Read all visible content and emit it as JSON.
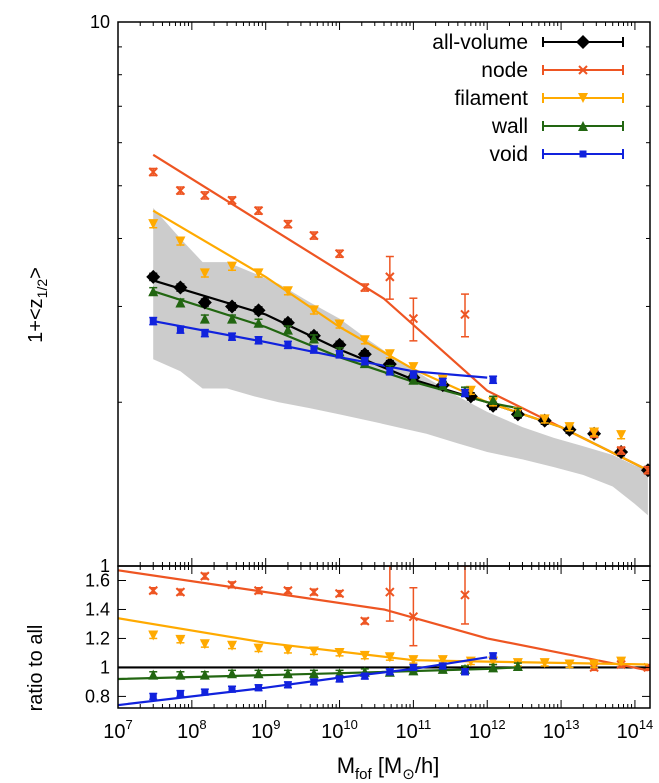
{
  "chart_data": [
    {
      "type": "scatter",
      "panel": "top",
      "xlabel_main": "M",
      "xlabel_sub": "fof",
      "xlabel_unit_pre": " [M",
      "xlabel_unit_sub": "⊙",
      "xlabel_unit_post": "/h]",
      "ylabel_main": "1+<z",
      "ylabel_sub": "1/2",
      "ylabel_post": ">",
      "xscale": "log",
      "yscale": "log",
      "xlim": [
        10000000.0,
        160000000000000.0
      ],
      "ylim": [
        1,
        10
      ],
      "ytick_labels": [
        "1",
        "10"
      ],
      "legend_position": "top-right",
      "band": {
        "x": [
          30000000.0,
          70000000.0,
          140000000.0,
          300000000.0,
          700000000.0,
          1500000000.0,
          4000000000.0,
          10000000000.0,
          25000000000.0,
          60000000000.0,
          150000000000.0,
          400000000000.0,
          1000000000000.0,
          3000000000000.0,
          8000000000000.0,
          20000000000000.0,
          50000000000000.0,
          100000000000000.0,
          150000000000000.0
        ],
        "upper": [
          4.55,
          4.0,
          3.62,
          3.62,
          3.45,
          3.3,
          3.05,
          2.85,
          2.6,
          2.4,
          2.22,
          2.05,
          1.92,
          1.8,
          1.72,
          1.66,
          1.6,
          1.53,
          1.5
        ],
        "lower": [
          2.4,
          2.28,
          2.12,
          2.12,
          2.05,
          2.0,
          1.95,
          1.9,
          1.85,
          1.8,
          1.75,
          1.68,
          1.62,
          1.57,
          1.52,
          1.47,
          1.4,
          1.3,
          1.24
        ]
      },
      "series": [
        {
          "name": "all-volume",
          "color": "#000000",
          "marker": "diamond",
          "x": [
            30000000.0,
            70000000.0,
            150000000.0,
            350000000.0,
            800000000.0,
            2000000000.0,
            4500000000.0,
            10000000000.0,
            22000000000.0,
            48000000000.0,
            100000000000.0,
            250000000000.0,
            600000000000.0,
            1200000000000.0,
            2600000000000.0,
            6000000000000.0,
            13000000000000.0,
            28000000000000.0,
            65000000000000.0,
            150000000000000.0
          ],
          "y": [
            3.4,
            3.25,
            3.05,
            3.0,
            2.95,
            2.8,
            2.65,
            2.55,
            2.45,
            2.35,
            2.22,
            2.15,
            2.05,
            1.97,
            1.9,
            1.85,
            1.78,
            1.75,
            1.62,
            1.5
          ],
          "fit_x": [
            30000000.0,
            1000000000.0,
            10000000000.0,
            100000000000.0,
            1000000000000.0,
            10000000000000.0,
            150000000000000.0
          ],
          "fit_y": [
            3.35,
            2.9,
            2.5,
            2.2,
            2.0,
            1.8,
            1.5
          ]
        },
        {
          "name": "node",
          "color": "#ee5522",
          "marker": "x",
          "x": [
            30000000.0,
            70000000.0,
            150000000.0,
            350000000.0,
            800000000.0,
            2000000000.0,
            4500000000.0,
            10000000000.0,
            22000000000.0,
            48000000000.0,
            100000000000.0,
            500000000000.0,
            28000000000000.0,
            65000000000000.0,
            150000000000000.0
          ],
          "y": [
            5.3,
            4.9,
            4.8,
            4.7,
            4.5,
            4.25,
            4.05,
            3.75,
            3.25,
            3.4,
            2.85,
            2.9,
            1.75,
            1.63,
            1.5
          ],
          "fit_x": [
            30000000.0,
            40000000000.0,
            1000000000000.0,
            150000000000000.0
          ],
          "fit_y": [
            5.7,
            3.1,
            2.1,
            1.5
          ]
        },
        {
          "name": "filament",
          "color": "#ffaa00",
          "marker": "triangle-down",
          "x": [
            30000000.0,
            70000000.0,
            150000000.0,
            350000000.0,
            800000000.0,
            2000000000.0,
            4500000000.0,
            10000000000.0,
            22000000000.0,
            48000000000.0,
            100000000000.0,
            250000000000.0,
            600000000000.0,
            1200000000000.0,
            2600000000000.0,
            6000000000000.0,
            13000000000000.0,
            28000000000000.0,
            65000000000000.0
          ],
          "y": [
            4.25,
            3.95,
            3.45,
            3.55,
            3.45,
            3.2,
            2.95,
            2.78,
            2.6,
            2.45,
            2.32,
            2.2,
            2.1,
            2.0,
            1.92,
            1.86,
            1.8,
            1.76,
            1.74
          ],
          "fit_x": [
            30000000.0,
            1000000000.0,
            10000000000.0,
            100000000000.0,
            1000000000000.0,
            10000000000000.0,
            150000000000000.0
          ],
          "fit_y": [
            4.5,
            3.4,
            2.75,
            2.3,
            2.0,
            1.8,
            1.5
          ]
        },
        {
          "name": "wall",
          "color": "#226611",
          "marker": "triangle-up",
          "x": [
            30000000.0,
            70000000.0,
            150000000.0,
            350000000.0,
            800000000.0,
            2000000000.0,
            4500000000.0,
            10000000000.0,
            22000000000.0,
            48000000000.0,
            100000000000.0,
            250000000000.0,
            500000000000.0,
            1200000000000.0,
            2600000000000.0
          ],
          "y": [
            3.2,
            3.05,
            2.85,
            2.85,
            2.8,
            2.72,
            2.62,
            2.48,
            2.36,
            2.3,
            2.2,
            2.15,
            2.1,
            2.02,
            1.92
          ],
          "fit_x": [
            30000000.0,
            1000000000.0,
            10000000000.0,
            100000000000.0,
            1000000000000.0,
            2600000000000.0
          ],
          "fit_y": [
            3.2,
            2.75,
            2.42,
            2.18,
            2.0,
            1.95
          ]
        },
        {
          "name": "void",
          "color": "#1122dd",
          "marker": "square",
          "x": [
            30000000.0,
            70000000.0,
            150000000.0,
            350000000.0,
            800000000.0,
            2000000000.0,
            4500000000.0,
            10000000000.0,
            22000000000.0,
            48000000000.0,
            100000000000.0,
            250000000000.0,
            500000000000.0,
            1200000000000.0
          ],
          "y": [
            2.82,
            2.72,
            2.68,
            2.64,
            2.6,
            2.55,
            2.5,
            2.45,
            2.38,
            2.28,
            2.25,
            2.18,
            2.08,
            2.2
          ],
          "fit_x": [
            30000000.0,
            1000000000.0,
            10000000000.0,
            100000000000.0,
            1000000000000.0
          ],
          "fit_y": [
            2.82,
            2.58,
            2.42,
            2.28,
            2.22
          ]
        }
      ]
    },
    {
      "type": "scatter",
      "panel": "bottom",
      "ylabel": "ratio to all",
      "xscale": "log",
      "xlim": [
        10000000.0,
        160000000000000.0
      ],
      "ylim": [
        0.72,
        1.7
      ],
      "ytick_labels": [
        "0.8",
        "1",
        "1.2",
        "1.4",
        "1.6"
      ],
      "xtick_labels": [
        "10^7",
        "10^8",
        "10^9",
        "10^10",
        "10^11",
        "10^12",
        "10^13",
        "10^14"
      ],
      "reference_line": 1,
      "series": [
        {
          "name": "node",
          "color": "#ee5522",
          "x": [
            30000000.0,
            70000000.0,
            150000000.0,
            350000000.0,
            800000000.0,
            2000000000.0,
            4500000000.0,
            10000000000.0,
            22000000000.0,
            48000000000.0,
            100000000000.0,
            500000000000.0,
            28000000000000.0,
            65000000000000.0,
            150000000000000.0
          ],
          "y": [
            1.53,
            1.52,
            1.63,
            1.57,
            1.53,
            1.53,
            1.52,
            1.51,
            1.32,
            1.52,
            1.35,
            1.5,
            1.0,
            1.02,
            1.0
          ],
          "fit_x": [
            10000000.0,
            40000000000.0,
            1000000000000.0,
            150000000000000.0
          ],
          "fit_y": [
            1.67,
            1.4,
            1.2,
            0.98
          ]
        },
        {
          "name": "filament",
          "color": "#ffaa00",
          "x": [
            30000000.0,
            70000000.0,
            150000000.0,
            350000000.0,
            800000000.0,
            2000000000.0,
            4500000000.0,
            10000000000.0,
            22000000000.0,
            48000000000.0,
            100000000000.0,
            250000000000.0,
            600000000000.0,
            1200000000000.0,
            2600000000000.0,
            6000000000000.0,
            13000000000000.0,
            28000000000000.0,
            65000000000000.0
          ],
          "y": [
            1.22,
            1.19,
            1.16,
            1.15,
            1.13,
            1.12,
            1.11,
            1.1,
            1.08,
            1.07,
            1.05,
            1.05,
            1.04,
            1.04,
            1.03,
            1.03,
            1.02,
            1.02,
            1.04
          ],
          "fit_x": [
            10000000.0,
            1000000000.0,
            100000000000.0,
            1000000000000.0,
            150000000000000.0
          ],
          "fit_y": [
            1.34,
            1.17,
            1.05,
            1.04,
            1.02
          ]
        },
        {
          "name": "wall",
          "color": "#226611",
          "x": [
            30000000.0,
            70000000.0,
            150000000.0,
            350000000.0,
            800000000.0,
            2000000000.0,
            4500000000.0,
            10000000000.0,
            22000000000.0,
            48000000000.0,
            100000000000.0,
            250000000000.0,
            500000000000.0,
            1200000000000.0,
            2600000000000.0
          ],
          "y": [
            0.95,
            0.95,
            0.95,
            0.96,
            0.96,
            0.96,
            0.96,
            0.96,
            0.97,
            0.97,
            0.98,
            0.99,
            0.99,
            1.0,
            1.01
          ],
          "fit_x": [
            10000000.0,
            10000000000.0,
            1000000000000.0,
            2600000000000.0
          ],
          "fit_y": [
            0.92,
            0.96,
            0.99,
            1.0
          ]
        },
        {
          "name": "void",
          "color": "#1122dd",
          "x": [
            30000000.0,
            70000000.0,
            150000000.0,
            350000000.0,
            800000000.0,
            2000000000.0,
            4500000000.0,
            10000000000.0,
            22000000000.0,
            48000000000.0,
            100000000000.0,
            250000000000.0,
            500000000000.0,
            1200000000000.0
          ],
          "y": [
            0.8,
            0.82,
            0.83,
            0.85,
            0.86,
            0.88,
            0.9,
            0.92,
            0.94,
            0.97,
            1.0,
            1.01,
            0.97,
            1.08
          ],
          "fit_x": [
            10000000.0,
            1000000000.0,
            10000000000.0,
            100000000000.0,
            1000000000000.0
          ],
          "fit_y": [
            0.74,
            0.86,
            0.93,
            0.99,
            1.07
          ]
        }
      ]
    }
  ]
}
